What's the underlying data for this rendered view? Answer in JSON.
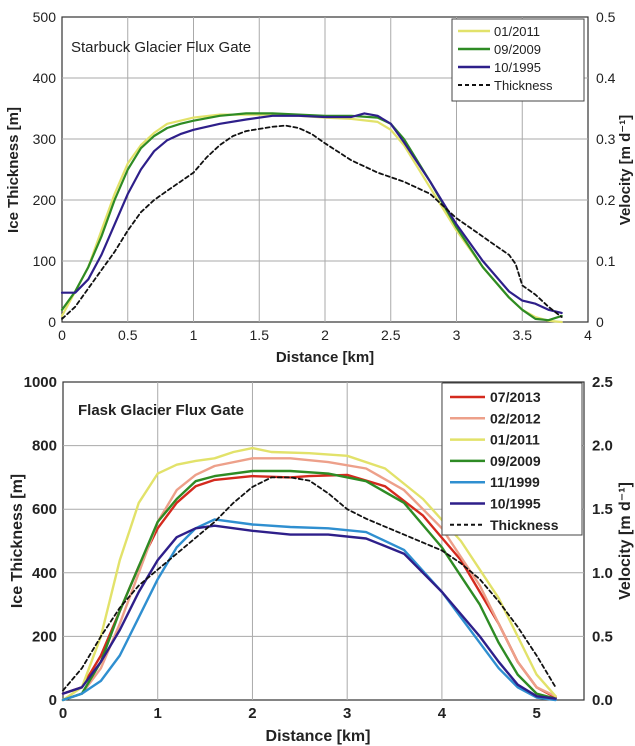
{
  "chart_data": [
    {
      "type": "line",
      "title": "Starbuck Glacier Flux Gate",
      "xlabel": "Distance [km]",
      "ylabel": "Ice Thickness [m]",
      "y2label": "Velocity [m d⁻¹]",
      "xlim": [
        0,
        4
      ],
      "ylim": [
        0,
        500
      ],
      "y2lim": [
        0,
        0.5
      ],
      "xticks": [
        "0",
        "0.5",
        "1",
        "1.5",
        "2",
        "2.5",
        "3",
        "3.5",
        "4"
      ],
      "yticks": [
        "0",
        "100",
        "200",
        "300",
        "400",
        "500"
      ],
      "y2ticks": [
        "0",
        "0.1",
        "0.2",
        "0.3",
        "0.4",
        "0.5"
      ],
      "grid": true,
      "legend_position": "top-right",
      "series": [
        {
          "name": "01/2011",
          "color": "#e2e26a",
          "dashed": false,
          "width": 2.2,
          "x": [
            0,
            0.1,
            0.2,
            0.3,
            0.4,
            0.5,
            0.6,
            0.7,
            0.8,
            0.9,
            1.0,
            1.2,
            1.4,
            1.6,
            1.8,
            2.0,
            2.2,
            2.4,
            2.5,
            2.6,
            2.8,
            3.0,
            3.2,
            3.4,
            3.5,
            3.6,
            3.7,
            3.8
          ],
          "y": [
            0.01,
            0.05,
            0.09,
            0.15,
            0.21,
            0.26,
            0.29,
            0.31,
            0.325,
            0.33,
            0.335,
            0.34,
            0.34,
            0.34,
            0.338,
            0.335,
            0.333,
            0.328,
            0.315,
            0.29,
            0.22,
            0.15,
            0.09,
            0.04,
            0.02,
            0.008,
            0.002,
            0.0
          ]
        },
        {
          "name": "09/2009",
          "color": "#2e8b24",
          "dashed": false,
          "width": 2.2,
          "x": [
            0,
            0.1,
            0.2,
            0.3,
            0.4,
            0.5,
            0.6,
            0.7,
            0.8,
            0.9,
            1.0,
            1.2,
            1.4,
            1.6,
            1.8,
            2.0,
            2.2,
            2.4,
            2.5,
            2.6,
            2.8,
            3.0,
            3.2,
            3.4,
            3.5,
            3.6,
            3.7,
            3.8
          ],
          "y": [
            0.02,
            0.05,
            0.09,
            0.14,
            0.2,
            0.25,
            0.285,
            0.305,
            0.318,
            0.325,
            0.33,
            0.338,
            0.342,
            0.342,
            0.34,
            0.338,
            0.338,
            0.335,
            0.325,
            0.3,
            0.23,
            0.155,
            0.09,
            0.04,
            0.02,
            0.005,
            0.003,
            0.01
          ]
        },
        {
          "name": "10/1995",
          "color": "#2e1f8a",
          "dashed": false,
          "width": 2.2,
          "x": [
            0,
            0.1,
            0.2,
            0.3,
            0.4,
            0.5,
            0.6,
            0.7,
            0.8,
            0.9,
            1.0,
            1.2,
            1.4,
            1.6,
            1.8,
            2.0,
            2.2,
            2.3,
            2.4,
            2.5,
            2.6,
            2.8,
            3.0,
            3.2,
            3.4,
            3.5,
            3.6,
            3.7,
            3.8
          ],
          "y": [
            0.048,
            0.048,
            0.07,
            0.11,
            0.16,
            0.21,
            0.25,
            0.28,
            0.298,
            0.308,
            0.315,
            0.325,
            0.332,
            0.338,
            0.338,
            0.336,
            0.336,
            0.342,
            0.338,
            0.325,
            0.295,
            0.23,
            0.16,
            0.1,
            0.05,
            0.035,
            0.03,
            0.02,
            0.015
          ]
        },
        {
          "name": "Thickness",
          "color": "#111111",
          "dashed": true,
          "width": 1.8,
          "x": [
            0,
            0.1,
            0.2,
            0.3,
            0.4,
            0.5,
            0.6,
            0.7,
            0.8,
            0.9,
            1.0,
            1.1,
            1.2,
            1.3,
            1.4,
            1.6,
            1.7,
            1.8,
            1.9,
            2.0,
            2.2,
            2.4,
            2.6,
            2.8,
            3.0,
            3.1,
            3.2,
            3.3,
            3.4,
            3.45,
            3.5,
            3.6,
            3.7,
            3.8
          ],
          "y": [
            5,
            25,
            55,
            85,
            115,
            150,
            180,
            200,
            215,
            230,
            245,
            270,
            290,
            305,
            313,
            320,
            322,
            318,
            308,
            293,
            265,
            245,
            230,
            210,
            170,
            155,
            140,
            125,
            110,
            95,
            60,
            45,
            25,
            8
          ]
        }
      ]
    },
    {
      "type": "line",
      "title": "Flask Glacier Flux Gate",
      "xlabel": "Distance [km]",
      "ylabel": "Ice Thickness [m]",
      "y2label": "Velocity [m d⁻¹]",
      "xlim": [
        0,
        5.5
      ],
      "ylim": [
        0,
        1000
      ],
      "y2lim": [
        0,
        2.5
      ],
      "xticks": [
        "0",
        "1",
        "2",
        "3",
        "4",
        "5"
      ],
      "yticks": [
        "0",
        "200",
        "400",
        "600",
        "800",
        "1000"
      ],
      "y2ticks": [
        "0.0",
        "0.5",
        "1.0",
        "1.5",
        "2.0",
        "2.5"
      ],
      "grid": true,
      "legend_position": "top-right",
      "series": [
        {
          "name": "07/2013",
          "color": "#d42a1e",
          "dashed": false,
          "width": 2.4,
          "x": [
            0,
            0.2,
            0.4,
            0.6,
            0.8,
            1.0,
            1.2,
            1.4,
            1.6,
            2.0,
            2.4,
            2.6,
            3.0,
            3.4,
            3.8,
            4.2,
            4.6,
            4.8,
            5.0,
            5.2
          ],
          "y": [
            0.05,
            0.1,
            0.35,
            0.7,
            1.05,
            1.35,
            1.55,
            1.68,
            1.73,
            1.76,
            1.75,
            1.76,
            1.77,
            1.68,
            1.45,
            1.1,
            0.6,
            0.3,
            0.1,
            0.02
          ]
        },
        {
          "name": "02/2012",
          "color": "#eda08a",
          "dashed": false,
          "width": 2.4,
          "x": [
            0,
            0.2,
            0.4,
            0.6,
            0.8,
            1.0,
            1.2,
            1.4,
            1.6,
            2.0,
            2.4,
            2.8,
            3.2,
            3.6,
            4.0,
            4.4,
            4.6,
            4.8,
            5.0,
            5.2
          ],
          "y": [
            0.0,
            0.05,
            0.25,
            0.6,
            1.0,
            1.4,
            1.65,
            1.77,
            1.84,
            1.9,
            1.9,
            1.87,
            1.82,
            1.65,
            1.35,
            0.9,
            0.6,
            0.3,
            0.1,
            0.03
          ]
        },
        {
          "name": "01/2011",
          "color": "#e2e26a",
          "dashed": false,
          "width": 2.4,
          "x": [
            0,
            0.2,
            0.4,
            0.6,
            0.8,
            1.0,
            1.2,
            1.4,
            1.6,
            1.8,
            2.0,
            2.2,
            2.6,
            3.0,
            3.4,
            3.8,
            4.2,
            4.6,
            4.8,
            5.0,
            5.2
          ],
          "y": [
            0.0,
            0.1,
            0.5,
            1.1,
            1.55,
            1.78,
            1.85,
            1.88,
            1.9,
            1.95,
            1.98,
            1.95,
            1.94,
            1.92,
            1.82,
            1.58,
            1.25,
            0.8,
            0.5,
            0.2,
            0.03
          ]
        },
        {
          "name": "09/2009",
          "color": "#2e8b24",
          "dashed": false,
          "width": 2.4,
          "x": [
            0,
            0.2,
            0.4,
            0.6,
            0.8,
            1.0,
            1.2,
            1.4,
            1.6,
            2.0,
            2.4,
            2.8,
            3.2,
            3.6,
            4.0,
            4.4,
            4.6,
            4.8,
            5.0,
            5.2
          ],
          "y": [
            0.0,
            0.05,
            0.3,
            0.7,
            1.05,
            1.4,
            1.58,
            1.72,
            1.76,
            1.8,
            1.8,
            1.78,
            1.72,
            1.55,
            1.2,
            0.75,
            0.45,
            0.2,
            0.05,
            0.01
          ]
        },
        {
          "name": "11/1999",
          "color": "#2f8fd0",
          "dashed": false,
          "width": 2.4,
          "x": [
            0,
            0.2,
            0.4,
            0.6,
            0.8,
            1.0,
            1.2,
            1.4,
            1.6,
            2.0,
            2.4,
            2.8,
            3.2,
            3.6,
            4.0,
            4.4,
            4.6,
            4.8,
            5.0,
            5.2
          ],
          "y": [
            0.0,
            0.05,
            0.15,
            0.35,
            0.65,
            0.95,
            1.2,
            1.35,
            1.42,
            1.38,
            1.36,
            1.35,
            1.32,
            1.18,
            0.85,
            0.45,
            0.25,
            0.1,
            0.02,
            0.0
          ]
        },
        {
          "name": "10/1995",
          "color": "#2e1f8a",
          "dashed": false,
          "width": 2.4,
          "x": [
            0,
            0.2,
            0.4,
            0.6,
            0.8,
            1.0,
            1.2,
            1.4,
            1.6,
            2.0,
            2.4,
            2.8,
            3.2,
            3.6,
            4.0,
            4.4,
            4.6,
            4.8,
            5.0,
            5.2
          ],
          "y": [
            0.05,
            0.1,
            0.3,
            0.55,
            0.85,
            1.1,
            1.28,
            1.35,
            1.37,
            1.33,
            1.3,
            1.3,
            1.27,
            1.15,
            0.85,
            0.5,
            0.3,
            0.12,
            0.03,
            0.01
          ]
        },
        {
          "name": "Thickness",
          "color": "#111111",
          "dashed": true,
          "width": 1.8,
          "x": [
            0,
            0.2,
            0.4,
            0.6,
            0.8,
            1.0,
            1.2,
            1.4,
            1.6,
            1.8,
            2.0,
            2.2,
            2.4,
            2.6,
            2.8,
            3.0,
            3.2,
            3.4,
            3.6,
            3.8,
            4.0,
            4.2,
            4.4,
            4.6,
            4.8,
            5.0,
            5.2
          ],
          "y": [
            30,
            100,
            200,
            290,
            360,
            410,
            460,
            510,
            560,
            620,
            670,
            700,
            700,
            690,
            650,
            600,
            570,
            545,
            520,
            495,
            470,
            430,
            380,
            310,
            230,
            140,
            40
          ]
        }
      ]
    }
  ]
}
